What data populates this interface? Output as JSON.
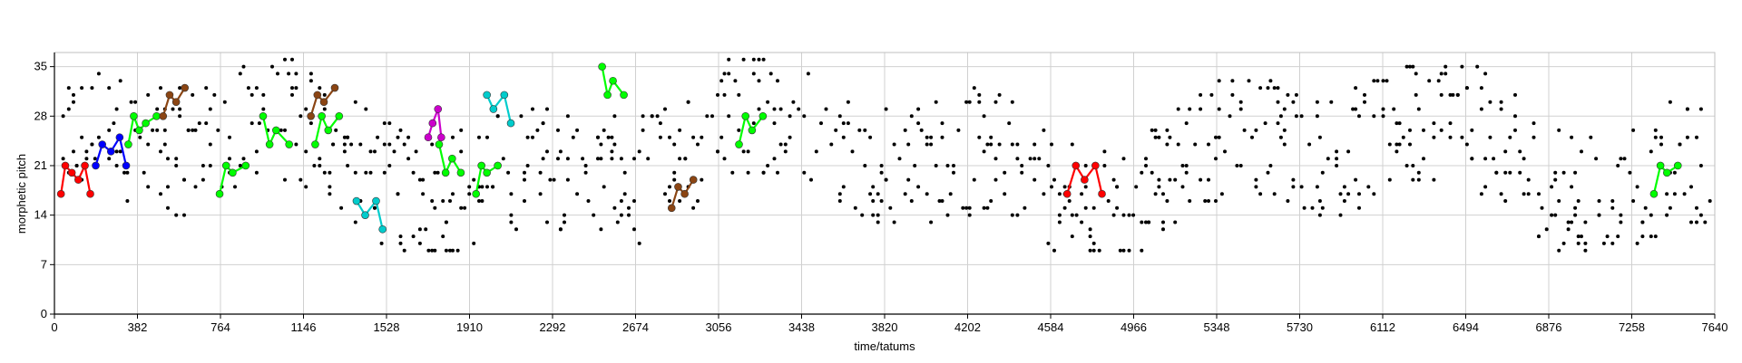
{
  "chart_data": {
    "type": "scatter",
    "title": "",
    "xlabel": "time/tatums",
    "ylabel": "morphetic pitch",
    "xlim": [
      0,
      7640
    ],
    "ylim": [
      0,
      37
    ],
    "x_ticks": [
      0,
      382,
      764,
      1146,
      1528,
      1910,
      2292,
      2674,
      3056,
      3438,
      3820,
      4202,
      4584,
      4966,
      5348,
      5730,
      6112,
      6494,
      6876,
      7258,
      7640
    ],
    "x_tick_labels": [
      "0",
      "382",
      "764",
      "1146",
      "1528",
      "1910",
      "2292",
      "2674",
      "3056",
      "3438",
      "3820",
      "4202",
      "4584",
      "4966",
      "5348",
      "5730",
      "6112",
      "6494",
      "6876",
      "7258",
      "7640"
    ],
    "y_ticks": [
      0,
      7,
      14,
      21,
      28,
      35
    ],
    "y_tick_labels": [
      "0",
      "7",
      "14",
      "21",
      "28",
      "35"
    ],
    "grid": true,
    "note_color": "#000000",
    "series": [
      {
        "color": "#ff0000",
        "points": [
          [
            30,
            17
          ],
          [
            50,
            21
          ],
          [
            80,
            20
          ],
          [
            110,
            19
          ],
          [
            140,
            21
          ],
          [
            165,
            17
          ]
        ]
      },
      {
        "color": "#ff0000",
        "points": [
          [
            4660,
            17
          ],
          [
            4700,
            21
          ],
          [
            4740,
            19
          ],
          [
            4790,
            21
          ],
          [
            4820,
            17
          ]
        ]
      },
      {
        "color": "#0000ff",
        "points": [
          [
            190,
            21
          ],
          [
            220,
            24
          ],
          [
            260,
            23
          ],
          [
            300,
            25
          ],
          [
            330,
            21
          ]
        ]
      },
      {
        "color": "#00ff00",
        "points": [
          [
            340,
            24
          ],
          [
            365,
            28
          ],
          [
            390,
            26
          ],
          [
            420,
            27
          ],
          [
            470,
            28
          ]
        ]
      },
      {
        "color": "#00ff00",
        "points": [
          [
            760,
            17
          ],
          [
            790,
            21
          ],
          [
            820,
            20
          ],
          [
            880,
            21
          ]
        ]
      },
      {
        "color": "#00ff00",
        "points": [
          [
            960,
            28
          ],
          [
            990,
            24
          ],
          [
            1020,
            26
          ],
          [
            1080,
            24
          ]
        ]
      },
      {
        "color": "#00ff00",
        "points": [
          [
            1200,
            24
          ],
          [
            1230,
            28
          ],
          [
            1260,
            26
          ],
          [
            1310,
            28
          ]
        ]
      },
      {
        "color": "#00ff00",
        "points": [
          [
            1770,
            24
          ],
          [
            1800,
            20
          ],
          [
            1830,
            22
          ],
          [
            1870,
            20
          ]
        ]
      },
      {
        "color": "#00ff00",
        "points": [
          [
            1940,
            17
          ],
          [
            1965,
            21
          ],
          [
            1990,
            20
          ],
          [
            2040,
            21
          ]
        ]
      },
      {
        "color": "#00ff00",
        "points": [
          [
            2520,
            35
          ],
          [
            2545,
            31
          ],
          [
            2570,
            33
          ],
          [
            2620,
            31
          ]
        ]
      },
      {
        "color": "#00ff00",
        "points": [
          [
            3150,
            24
          ],
          [
            3180,
            28
          ],
          [
            3210,
            26
          ],
          [
            3260,
            28
          ]
        ]
      },
      {
        "color": "#00ff00",
        "points": [
          [
            7360,
            17
          ],
          [
            7390,
            21
          ],
          [
            7420,
            20
          ],
          [
            7470,
            21
          ]
        ]
      },
      {
        "color": "#00cccc",
        "points": [
          [
            1390,
            16
          ],
          [
            1430,
            14
          ],
          [
            1480,
            16
          ],
          [
            1510,
            12
          ]
        ]
      },
      {
        "color": "#00cccc",
        "points": [
          [
            1990,
            31
          ],
          [
            2020,
            29
          ],
          [
            2070,
            31
          ],
          [
            2100,
            27
          ]
        ]
      },
      {
        "color": "#cc00cc",
        "points": [
          [
            1720,
            25
          ],
          [
            1740,
            27
          ],
          [
            1765,
            29
          ],
          [
            1780,
            25
          ]
        ]
      },
      {
        "color": "#8b4513",
        "points": [
          [
            500,
            28
          ],
          [
            530,
            31
          ],
          [
            560,
            30
          ],
          [
            600,
            32
          ]
        ]
      },
      {
        "color": "#8b4513",
        "points": [
          [
            1180,
            28
          ],
          [
            1210,
            31
          ],
          [
            1240,
            30
          ],
          [
            1290,
            32
          ]
        ]
      },
      {
        "color": "#8b4513",
        "points": [
          [
            2840,
            15
          ],
          [
            2870,
            18
          ],
          [
            2900,
            17
          ],
          [
            2940,
            19
          ]
        ]
      }
    ]
  }
}
